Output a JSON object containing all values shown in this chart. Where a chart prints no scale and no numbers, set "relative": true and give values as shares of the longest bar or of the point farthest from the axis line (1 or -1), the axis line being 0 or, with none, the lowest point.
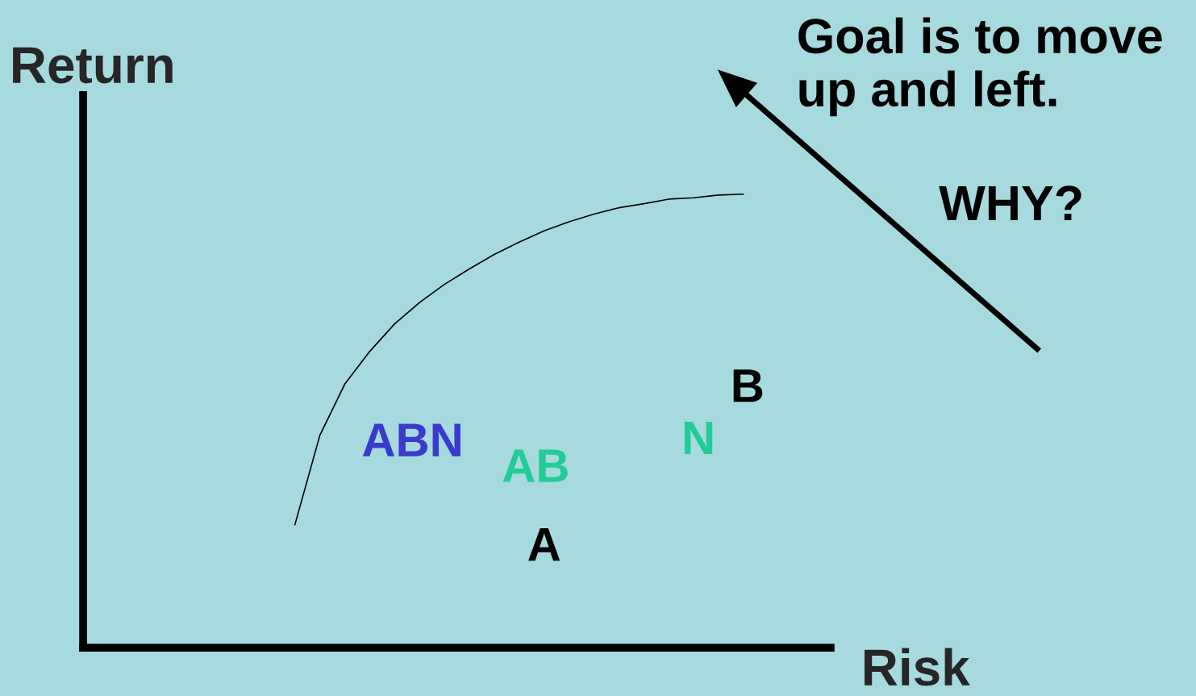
{
  "chart_data": {
    "type": "line",
    "relative": true,
    "xlabel": "Risk",
    "ylabel": "Return",
    "marker": "none",
    "categories": [
      null,
      null,
      null,
      null,
      null,
      null,
      null,
      null,
      null,
      null,
      null,
      null,
      null,
      null,
      null,
      null,
      null,
      null,
      null,
      null,
      null,
      null,
      null,
      null,
      null,
      null,
      null,
      null,
      null,
      null
    ],
    "annotations": [
      "Goal is to move up and left.",
      "WHY?",
      "ABN",
      "AB",
      "A",
      "N",
      "B"
    ],
    "series": [
      {
        "color": "#000000",
        "values": [
          null,
          null,
          null,
          null,
          null,
          null,
          null,
          null,
          0.271,
          0.468,
          0.581,
          0.653,
          0.714,
          0.761,
          0.801,
          0.835,
          0.867,
          0.894,
          0.919,
          0.939,
          0.956,
          0.97,
          0.979,
          0.989,
          0.992,
          0.998,
          1,
          null,
          null,
          null
        ]
      }
    ]
  }
}
